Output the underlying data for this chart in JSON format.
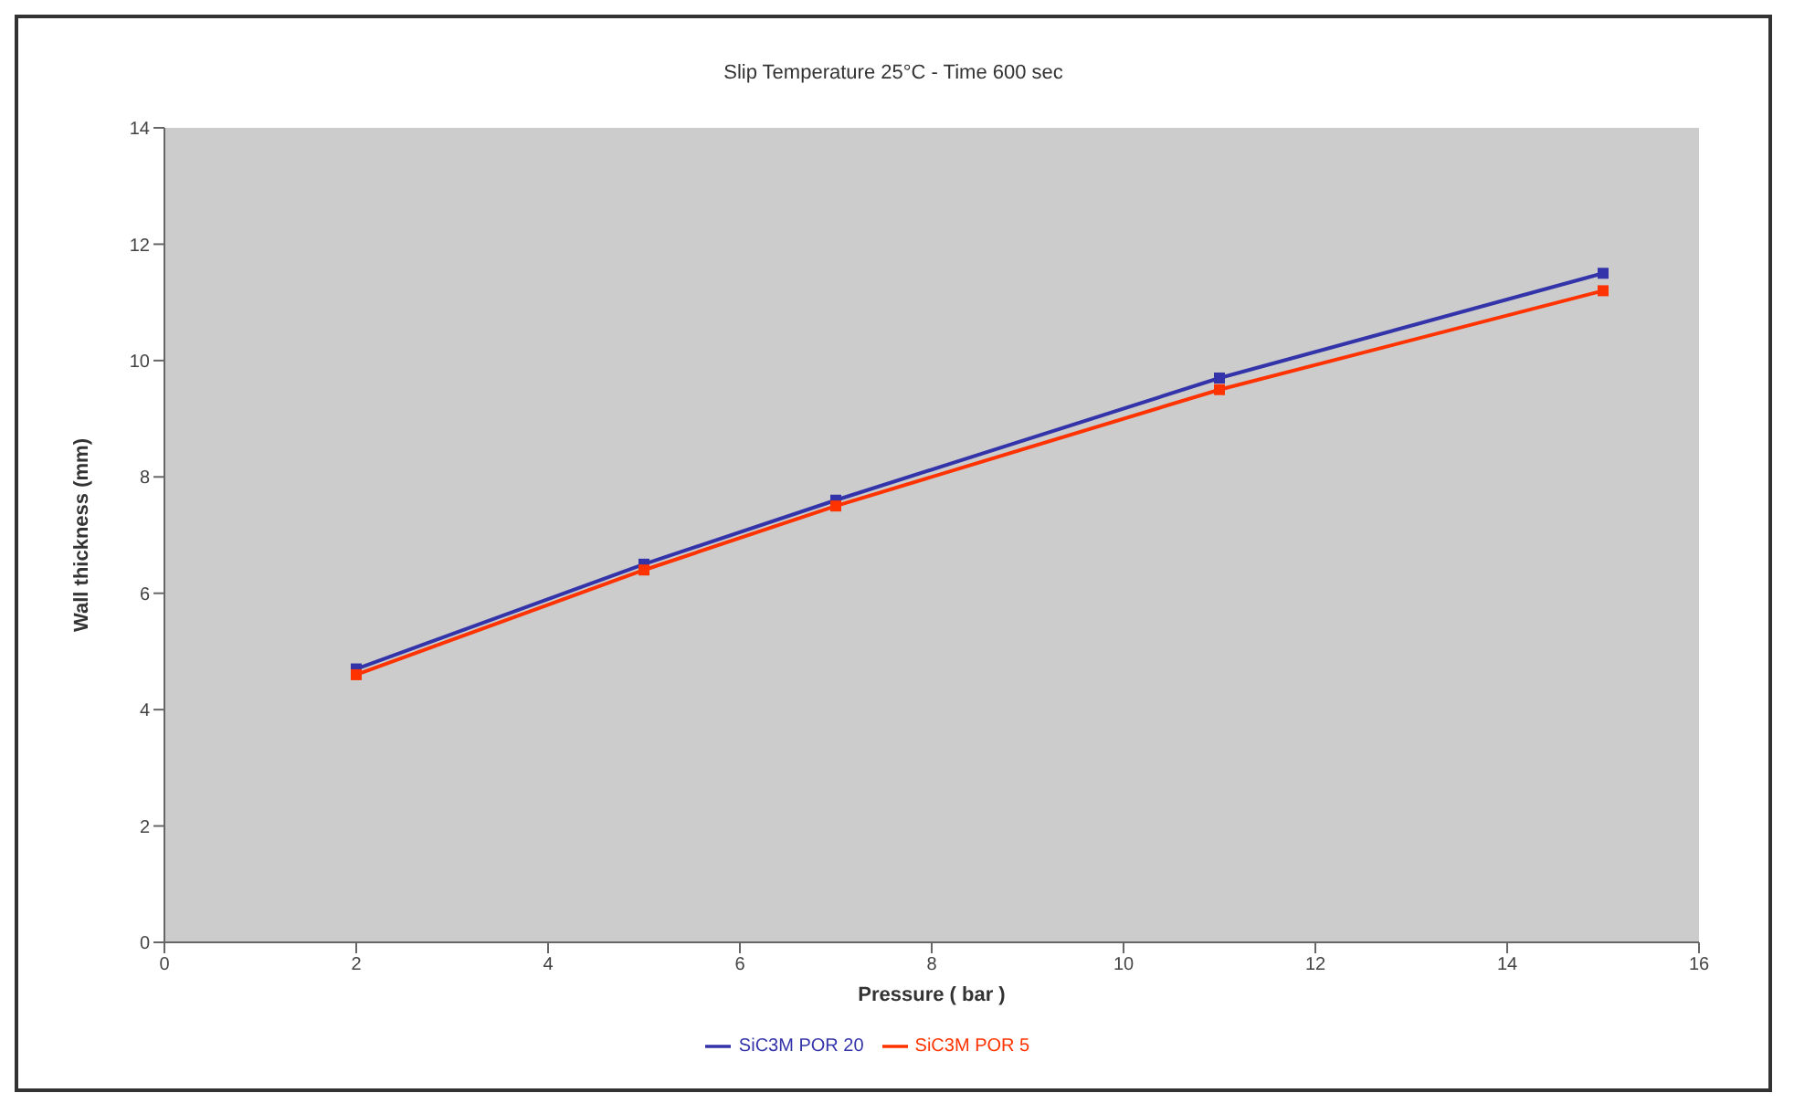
{
  "chart_data": {
    "type": "line",
    "title": "Slip Temperature 25°C - Time 600 sec",
    "xlabel": "Pressure ( bar )",
    "ylabel": "Wall thickness (mm)",
    "x": [
      2,
      5,
      7,
      11,
      15
    ],
    "series": [
      {
        "name": "SiC3M POR 5",
        "color": "#ff3300",
        "values": [
          4.6,
          6.4,
          7.5,
          9.5,
          11.2
        ]
      },
      {
        "name": "SiC3M POR 20",
        "color": "#3333aa",
        "values": [
          4.7,
          6.5,
          7.6,
          9.7,
          11.5
        ]
      }
    ],
    "xlim": [
      0,
      16
    ],
    "xticks": [
      0,
      2,
      4,
      6,
      8,
      10,
      12,
      14,
      16
    ],
    "ylim": [
      0,
      14
    ],
    "yticks": [
      0,
      2,
      4,
      6,
      8,
      10,
      12,
      14
    ],
    "grid": false,
    "legend": "bottom",
    "marker": "square",
    "line_style": "solid"
  }
}
